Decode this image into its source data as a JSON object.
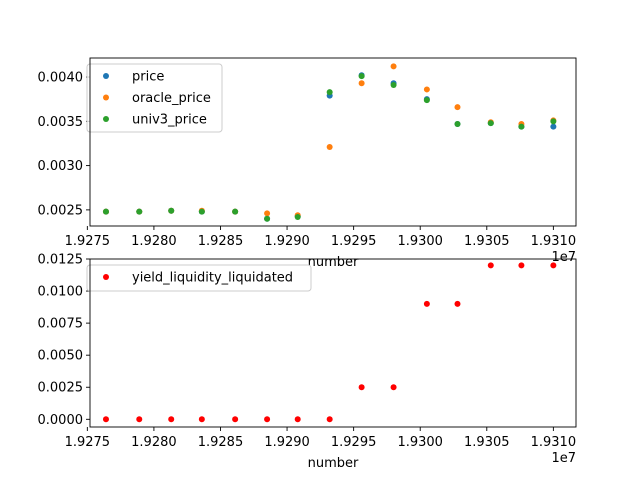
{
  "chart_data": [
    {
      "type": "scatter",
      "xlabel": "number",
      "x_offset_label": "1e7",
      "xlim": [
        1.92752,
        1.93117
      ],
      "ylim": [
        0.002318,
        0.004215
      ],
      "xticks": [
        1.9275,
        1.928,
        1.9285,
        1.929,
        1.9295,
        1.93,
        1.9305,
        1.931
      ],
      "xtick_labels": [
        "1.9275",
        "1.9280",
        "1.9285",
        "1.9290",
        "1.9295",
        "1.9300",
        "1.9305",
        "1.9310"
      ],
      "yticks": [
        0.0025,
        0.003,
        0.0035,
        0.004
      ],
      "ytick_labels": [
        "0.0025",
        "0.0030",
        "0.0035",
        "0.0040"
      ],
      "legend_position": "top-left",
      "x": [
        1.92764,
        1.92789,
        1.92813,
        1.92836,
        1.92861,
        1.92885,
        1.92908,
        1.92932,
        1.92956,
        1.9298,
        1.93005,
        1.93028,
        1.93053,
        1.93076,
        1.931
      ],
      "series": [
        {
          "name": "price",
          "color": "#1f77b4",
          "values": [
            0.00248,
            0.00248,
            0.00249,
            0.00248,
            0.00248,
            0.0024,
            0.00243,
            0.00379,
            0.00402,
            0.00393,
            0.00375,
            0.00347,
            0.00348,
            0.00344,
            0.00344
          ]
        },
        {
          "name": "oracle_price",
          "color": "#ff7f0e",
          "values": [
            0.00248,
            0.00248,
            0.00249,
            0.00249,
            0.00248,
            0.00246,
            0.00244,
            0.00321,
            0.00393,
            0.00412,
            0.00386,
            0.00366,
            0.00349,
            0.00347,
            0.00351
          ]
        },
        {
          "name": "univ3_price",
          "color": "#2ca02c",
          "values": [
            0.00248,
            0.00248,
            0.00249,
            0.00248,
            0.00248,
            0.0024,
            0.00242,
            0.00383,
            0.00401,
            0.00391,
            0.00374,
            0.00347,
            0.00348,
            0.00344,
            0.0035
          ]
        }
      ]
    },
    {
      "type": "scatter",
      "xlabel": "number",
      "x_offset_label": "1e7",
      "xlim": [
        1.92752,
        1.93117
      ],
      "ylim": [
        -0.0006,
        0.0125
      ],
      "xticks": [
        1.9275,
        1.928,
        1.9285,
        1.929,
        1.9295,
        1.93,
        1.9305,
        1.931
      ],
      "xtick_labels": [
        "1.9275",
        "1.9280",
        "1.9285",
        "1.9290",
        "1.9295",
        "1.9300",
        "1.9305",
        "1.9310"
      ],
      "yticks": [
        0,
        0.0025,
        0.005,
        0.0075,
        0.01,
        0.0125
      ],
      "ytick_labels": [
        "0.0000",
        "0.0025",
        "0.0050",
        "0.0075",
        "0.0100",
        "0.0125"
      ],
      "legend_position": "top-left",
      "x": [
        1.92764,
        1.92789,
        1.92813,
        1.92836,
        1.92861,
        1.92885,
        1.92908,
        1.92932,
        1.92956,
        1.9298,
        1.93005,
        1.93028,
        1.93053,
        1.93076,
        1.931
      ],
      "series": [
        {
          "name": "yield_liquidity_liquidated",
          "color": "#ff0000",
          "values": [
            0,
            0,
            0,
            0,
            0,
            0,
            0,
            0,
            0.0025,
            0.0025,
            0.009,
            0.009,
            0.012,
            0.012,
            0.012
          ]
        }
      ]
    }
  ]
}
